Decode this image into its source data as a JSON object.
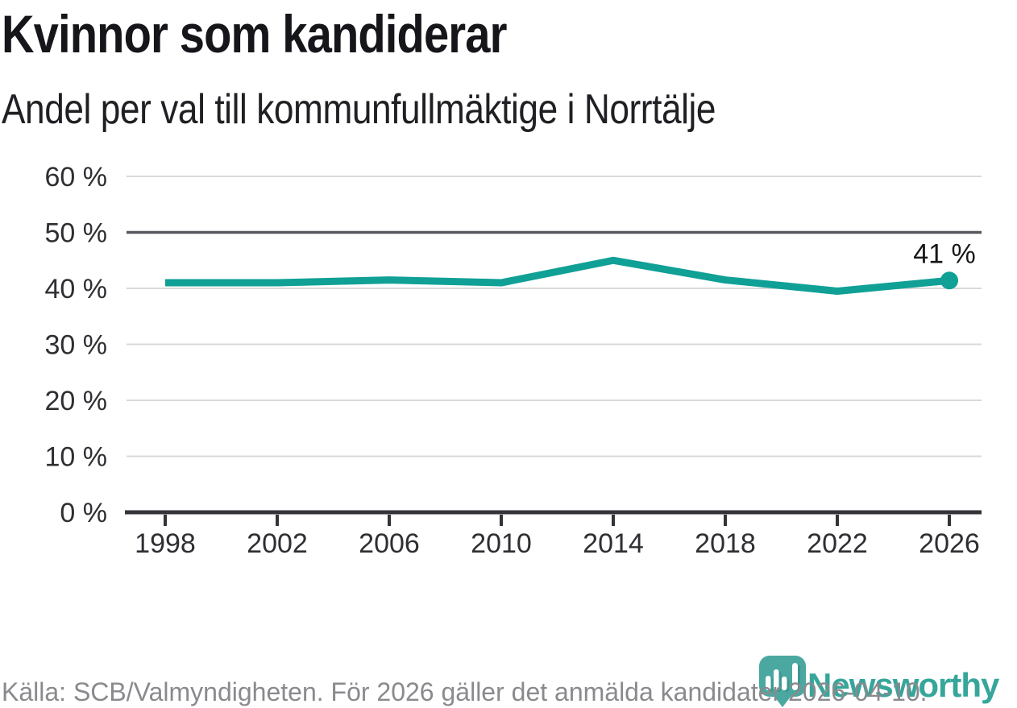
{
  "page": {
    "source_note": "Källa: SCB/Valmyndigheten. För 2026 gäller det anmälda kandidater 2026-04-10.",
    "brand": {
      "name": "Newsworthy"
    }
  },
  "colors": {
    "line": "#10a096",
    "grid": "#d9d9d9",
    "reference_line": "#57575e",
    "axis": "#33333a",
    "tick_text": "#2e2e33",
    "annotation_text": "#17171a",
    "source_text": "#8a8a8e",
    "brand_teal": "#36a69b",
    "logo_fill": "#4aa8a0",
    "logo_bar_shadow": "#3b978f",
    "logo_bars": "#ffffff"
  },
  "chart_data": {
    "type": "line",
    "title": "Kvinnor som kandiderar",
    "subtitle": "Andel per val till kommunfullmäktige i Norrtälje",
    "x": [
      1998,
      2002,
      2006,
      2010,
      2014,
      2018,
      2022,
      2026
    ],
    "series": [
      {
        "name": "Kvinnor som kandiderar",
        "values": [
          41,
          41,
          41.5,
          41,
          45,
          41.5,
          39.5,
          41.4
        ]
      }
    ],
    "ylim": [
      0,
      60
    ],
    "yticks": [
      0,
      10,
      20,
      30,
      40,
      50,
      60
    ],
    "ytick_suffix": " %",
    "reference_line_y": 50,
    "grid": "horizontal",
    "end_point_label": "41 %"
  }
}
